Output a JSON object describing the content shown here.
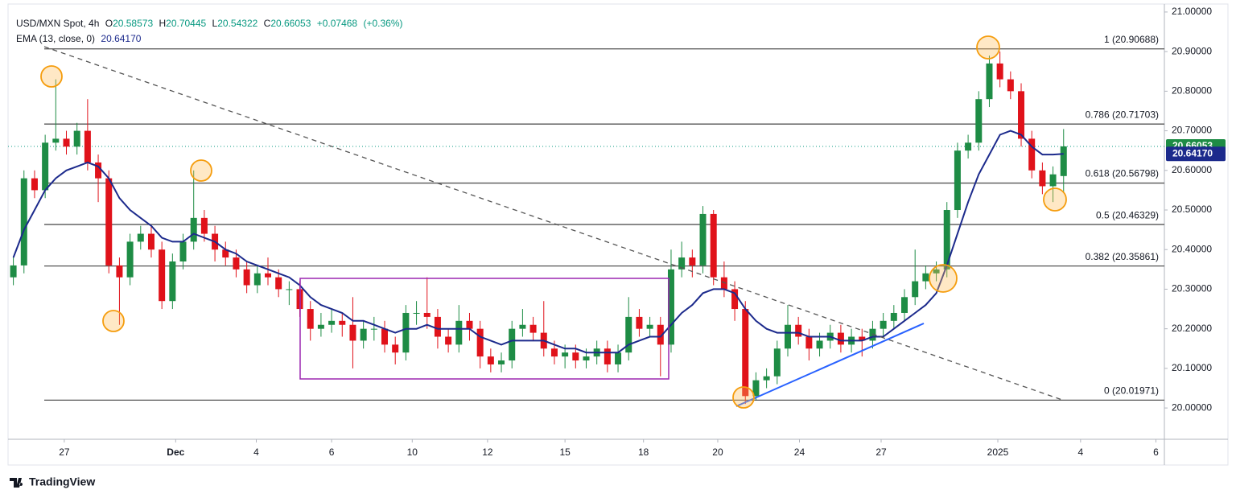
{
  "header": {
    "symbol": "USD/MXN Spot, 4h",
    "o": "O",
    "h": "H",
    "l": "L",
    "c": "C",
    "change": "+0.07468",
    "change_pct": "(+0.36%)",
    "brand": "TradingView"
  },
  "chart_data": {
    "type": "candlestick",
    "up_color": "#1e8c45",
    "down_color": "#e0121a",
    "open": [
      20.33,
      20.36,
      20.58,
      20.55,
      20.67,
      20.68,
      20.66,
      20.7,
      20.62,
      20.58,
      20.36,
      20.33,
      20.42,
      20.44,
      20.4,
      20.27,
      20.37,
      20.42,
      20.48,
      20.44,
      20.4,
      20.38,
      20.35,
      20.31,
      20.34,
      20.33,
      20.3,
      20.3,
      20.25,
      20.2,
      20.21,
      20.22,
      20.21,
      20.17,
      20.2,
      20.2,
      20.16,
      20.14,
      20.24,
      20.24,
      20.23,
      20.18,
      20.16,
      20.22,
      20.2,
      20.13,
      20.11,
      20.12,
      20.2,
      20.21,
      20.19,
      20.15,
      20.13,
      20.14,
      20.12,
      20.13,
      20.15,
      20.11,
      20.14,
      20.23,
      20.2,
      20.21,
      20.16,
      20.35,
      20.38,
      20.36,
      20.49,
      20.33,
      20.3,
      20.25,
      20.03,
      20.07,
      20.08,
      20.15,
      20.21,
      20.18,
      20.15,
      20.17,
      20.19,
      20.16,
      20.18,
      20.17,
      20.2,
      20.22,
      20.24,
      20.28,
      20.32,
      20.34,
      20.35,
      20.5,
      20.65,
      20.67,
      20.78,
      20.87,
      20.83,
      20.8,
      20.68,
      20.6,
      20.56,
      20.58573
    ],
    "high": [
      20.38,
      20.6,
      20.6,
      20.69,
      20.83,
      20.7,
      20.72,
      20.78,
      20.64,
      20.6,
      20.38,
      20.44,
      20.46,
      20.46,
      20.42,
      20.39,
      20.44,
      20.6,
      20.5,
      20.46,
      20.42,
      20.4,
      20.37,
      20.36,
      20.38,
      20.35,
      20.32,
      20.32,
      20.27,
      20.24,
      20.25,
      20.24,
      20.28,
      20.22,
      20.23,
      20.22,
      20.18,
      20.26,
      20.27,
      20.33,
      20.25,
      20.2,
      20.26,
      20.24,
      20.22,
      20.15,
      20.14,
      20.22,
      20.25,
      20.23,
      20.27,
      20.17,
      20.16,
      20.16,
      20.15,
      20.17,
      20.17,
      20.16,
      20.28,
      20.25,
      20.23,
      20.23,
      20.4,
      20.42,
      20.4,
      20.51,
      20.5,
      20.37,
      20.32,
      20.27,
      20.09,
      20.1,
      20.17,
      20.26,
      20.23,
      20.2,
      20.19,
      20.21,
      20.21,
      20.2,
      20.2,
      20.22,
      20.24,
      20.26,
      20.3,
      20.4,
      20.36,
      20.37,
      20.52,
      20.67,
      20.69,
      20.8,
      20.89,
      20.9,
      20.85,
      20.82,
      20.7,
      20.62,
      20.61,
      20.70445
    ],
    "low": [
      20.31,
      20.34,
      20.53,
      20.53,
      20.65,
      20.64,
      20.64,
      20.6,
      20.52,
      20.34,
      20.21,
      20.31,
      20.4,
      20.38,
      20.25,
      20.25,
      20.35,
      20.4,
      20.42,
      20.37,
      20.36,
      20.33,
      20.29,
      20.29,
      20.31,
      20.28,
      20.26,
      20.23,
      20.17,
      20.18,
      20.19,
      20.18,
      20.1,
      20.15,
      20.17,
      20.14,
      20.11,
      20.12,
      20.21,
      20.2,
      20.15,
      20.14,
      20.14,
      20.17,
      20.1,
      20.09,
      20.09,
      20.1,
      20.18,
      20.17,
      20.13,
      20.11,
      20.1,
      20.1,
      20.1,
      20.11,
      20.09,
      20.09,
      20.12,
      20.18,
      20.18,
      20.08,
      20.14,
      20.33,
      20.33,
      20.34,
      20.31,
      20.28,
      20.22,
      20.01,
      20.02,
      20.05,
      20.06,
      20.13,
      20.16,
      20.12,
      20.13,
      20.15,
      20.14,
      20.14,
      20.13,
      20.15,
      20.18,
      20.2,
      20.22,
      20.26,
      20.3,
      20.32,
      20.33,
      20.48,
      20.63,
      20.65,
      20.76,
      20.81,
      20.78,
      20.66,
      20.58,
      20.54,
      20.52,
      20.54322
    ],
    "close": [
      20.36,
      20.58,
      20.55,
      20.67,
      20.68,
      20.66,
      20.7,
      20.62,
      20.58,
      20.36,
      20.33,
      20.42,
      20.44,
      20.4,
      20.27,
      20.37,
      20.42,
      20.48,
      20.44,
      20.4,
      20.38,
      20.35,
      20.31,
      20.34,
      20.33,
      20.3,
      20.3,
      20.25,
      20.2,
      20.21,
      20.22,
      20.21,
      20.17,
      20.2,
      20.2,
      20.16,
      20.14,
      20.24,
      20.24,
      20.23,
      20.18,
      20.16,
      20.22,
      20.2,
      20.13,
      20.11,
      20.12,
      20.2,
      20.21,
      20.19,
      20.15,
      20.13,
      20.14,
      20.12,
      20.13,
      20.15,
      20.11,
      20.14,
      20.23,
      20.2,
      20.21,
      20.16,
      20.35,
      20.38,
      20.36,
      20.49,
      20.33,
      20.3,
      20.25,
      20.03,
      20.07,
      20.08,
      20.15,
      20.21,
      20.18,
      20.15,
      20.17,
      20.19,
      20.16,
      20.18,
      20.17,
      20.2,
      20.22,
      20.24,
      20.28,
      20.32,
      20.34,
      20.35,
      20.5,
      20.65,
      20.67,
      20.78,
      20.87,
      20.83,
      20.8,
      20.68,
      20.6,
      20.56,
      20.59,
      20.66053
    ],
    "series": [
      {
        "name": "EMA (13, close, 0)",
        "color": "#1c2a8c",
        "last_label": "20.64170",
        "values": [
          20.38,
          20.45,
          20.5,
          20.55,
          20.58,
          20.6,
          20.61,
          20.62,
          20.61,
          20.58,
          20.53,
          20.5,
          20.48,
          20.46,
          20.43,
          20.42,
          20.42,
          20.44,
          20.43,
          20.42,
          20.4,
          20.39,
          20.37,
          20.36,
          20.35,
          20.34,
          20.33,
          20.31,
          20.28,
          20.26,
          20.25,
          20.24,
          20.22,
          20.22,
          20.21,
          20.2,
          20.19,
          20.2,
          20.2,
          20.21,
          20.2,
          20.2,
          20.2,
          20.2,
          20.18,
          20.17,
          20.16,
          20.17,
          20.17,
          20.17,
          20.17,
          20.16,
          20.15,
          20.15,
          20.14,
          20.14,
          20.14,
          20.14,
          20.16,
          20.17,
          20.18,
          20.18,
          20.21,
          20.24,
          20.26,
          20.29,
          20.3,
          20.3,
          20.29,
          20.25,
          20.22,
          20.2,
          20.19,
          20.19,
          20.19,
          20.18,
          20.18,
          20.18,
          20.17,
          20.17,
          20.17,
          20.18,
          20.18,
          20.2,
          20.22,
          20.24,
          20.26,
          20.29,
          20.36,
          20.44,
          20.52,
          20.59,
          20.64,
          20.69,
          20.7,
          20.69,
          20.66,
          20.64,
          20.64,
          20.6417
        ]
      }
    ],
    "levels": [
      {
        "value": 20.90688,
        "label": "1 (20.90688)"
      },
      {
        "value": 20.71703,
        "label": "0.786 (20.71703)"
      },
      {
        "value": 20.56798,
        "label": "0.618 (20.56798)"
      },
      {
        "value": 20.46329,
        "label": "0.5 (20.46329)"
      },
      {
        "value": 20.35861,
        "label": "0.382 (20.35861)"
      },
      {
        "value": 20.01971,
        "label": "0 (20.01971)"
      }
    ],
    "xlim": [
      -0.5,
      108.5
    ],
    "xticks": [
      {
        "value": 4.8,
        "label": "27"
      },
      {
        "value": 15.3,
        "label": "Dec"
      },
      {
        "value": 22.9,
        "label": "4"
      },
      {
        "value": 30,
        "label": "6"
      },
      {
        "value": 37.6,
        "label": "10"
      },
      {
        "value": 44.7,
        "label": "12"
      },
      {
        "value": 52,
        "label": "15"
      },
      {
        "value": 59.4,
        "label": "18"
      },
      {
        "value": 66.4,
        "label": "20"
      },
      {
        "value": 74.1,
        "label": "24"
      },
      {
        "value": 81.8,
        "label": "27"
      },
      {
        "value": 92.8,
        "label": "2025"
      },
      {
        "value": 100.6,
        "label": "4"
      },
      {
        "value": 107.7,
        "label": "6"
      }
    ],
    "ylim": [
      19.923,
      21.01
    ],
    "yticks": [
      {
        "value": 20.0,
        "label": "20.00000"
      },
      {
        "value": 20.1,
        "label": "20.10000"
      },
      {
        "value": 20.2,
        "label": "20.20000"
      },
      {
        "value": 20.3,
        "label": "20.30000"
      },
      {
        "value": 20.4,
        "label": "20.40000"
      },
      {
        "value": 20.5,
        "label": "20.50000"
      },
      {
        "value": 20.6,
        "label": "20.60000"
      },
      {
        "value": 20.7,
        "label": "20.70000"
      },
      {
        "value": 20.8,
        "label": "20.80000"
      },
      {
        "value": 20.9,
        "label": "20.90000"
      },
      {
        "value": 21.0,
        "label": "21.00000"
      }
    ]
  }
}
